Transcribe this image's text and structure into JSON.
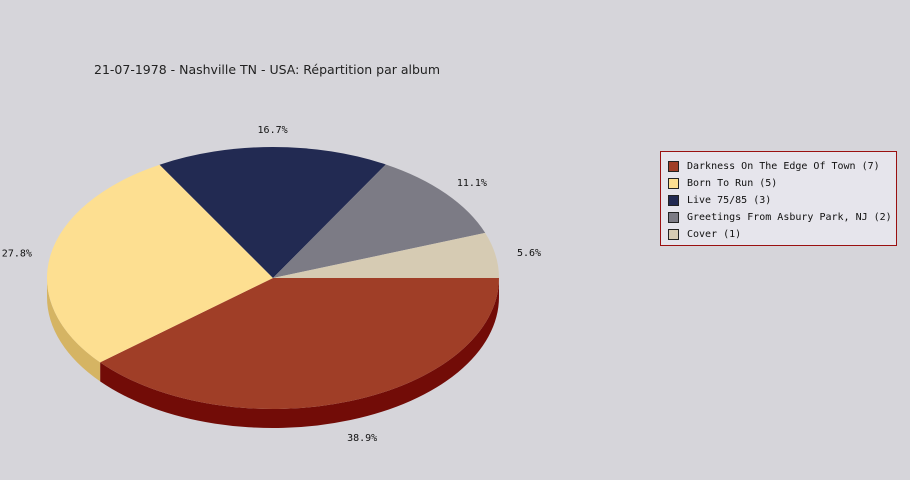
{
  "chart_data": {
    "type": "pie",
    "title": "21-07-1978 - Nashville TN - USA:  Répartition par album",
    "slices": [
      {
        "name": "Darkness On The Edge Of Town",
        "count": 7,
        "value": 38.9,
        "label": "38.9%",
        "color": "#a03e27",
        "side_color": "#720c07"
      },
      {
        "name": "Born To Run",
        "count": 5,
        "value": 27.8,
        "label": "27.8%",
        "color": "#fddf91",
        "side_color": "#d5b463"
      },
      {
        "name": "Live 75/85",
        "count": 3,
        "value": 16.7,
        "label": "16.7%",
        "color": "#222a52",
        "side_color": "#14183a"
      },
      {
        "name": "Greetings From Asbury Park, NJ",
        "count": 2,
        "value": 11.1,
        "label": "11.1%",
        "color": "#7c7b85",
        "side_color": "#55545c"
      },
      {
        "name": "Cover",
        "count": 1,
        "value": 5.6,
        "label": "5.6%",
        "color": "#d6cbb3",
        "side_color": "#aea38c"
      }
    ],
    "legend_position": "right",
    "legend_entries": [
      "Darkness On The Edge Of Town (7)",
      "Born To Run (5)",
      "Live 75/85 (3)",
      "Greetings From Asbury Park, NJ (2)",
      "Cover (1)"
    ]
  }
}
